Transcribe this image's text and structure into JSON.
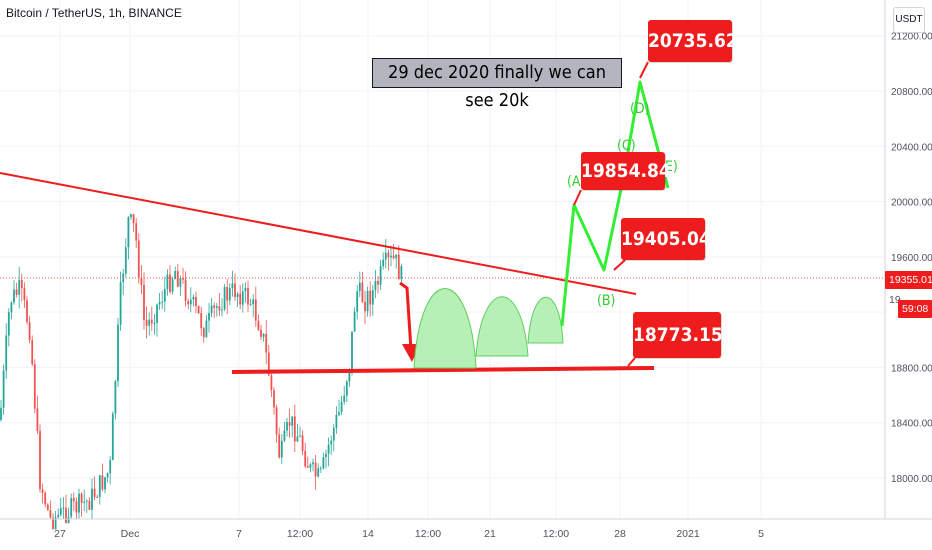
{
  "header": {
    "symbol_label": "Bitcoin / TetherUS, 1h, BINANCE",
    "currency": "USDT"
  },
  "annotation": {
    "text": "29 dec 2020 finally we can see 20k"
  },
  "callouts": [
    {
      "name": "target-high",
      "text": "20735.62"
    },
    {
      "name": "wave-a-high",
      "text": "19854.84"
    },
    {
      "name": "wave-b-low",
      "text": "19405.04"
    },
    {
      "name": "support",
      "text": "18773.15"
    }
  ],
  "wave_labels": [
    {
      "text": "(A)"
    },
    {
      "text": "(B)"
    },
    {
      "text": "(C)"
    },
    {
      "text": "(D)"
    },
    {
      "text": "(E)"
    }
  ],
  "price_tags": {
    "last_price": "19355.01",
    "countdown": "59:08",
    "hidden_price": "19"
  },
  "colors": {
    "up": "#26a69a",
    "down": "#ef5350",
    "trend": "#ee1c1c",
    "wave": "#33ee33",
    "dome_fill": "#b7f0b7",
    "dome_stroke": "#5fcf5f",
    "grid": "#f0f3fa"
  },
  "chart_data": {
    "type": "line",
    "ylim": [
      17700,
      21300
    ],
    "y_ticks": [
      {
        "value": 18000,
        "label": "18000.00"
      },
      {
        "value": 18400,
        "label": "18400.00"
      },
      {
        "value": 18800,
        "label": "18800.00"
      },
      {
        "value": 19200,
        "label": "19200.00"
      },
      {
        "value": 19600,
        "label": "19600.00"
      },
      {
        "value": 20000,
        "label": "20000.00"
      },
      {
        "value": 20400,
        "label": "20400.00"
      },
      {
        "value": 20800,
        "label": "20800.00"
      },
      {
        "value": 21200,
        "label": "21200.00"
      }
    ],
    "x_ticks": [
      "27",
      "Dec",
      "7",
      "12:00",
      "14",
      "12:00",
      "21",
      "12:00",
      "28",
      "2021",
      "5"
    ],
    "last_price": 19355.01,
    "wave_path_values": [
      18920,
      19855,
      19405,
      20180,
      20736,
      19960
    ],
    "support_level": 18773.15
  }
}
